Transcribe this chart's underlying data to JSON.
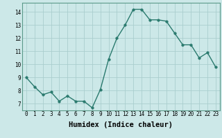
{
  "x": [
    0,
    1,
    2,
    3,
    4,
    5,
    6,
    7,
    8,
    9,
    10,
    11,
    12,
    13,
    14,
    15,
    16,
    17,
    18,
    19,
    20,
    21,
    22,
    23
  ],
  "y": [
    9.0,
    8.3,
    7.7,
    7.9,
    7.2,
    7.6,
    7.2,
    7.2,
    6.7,
    8.1,
    10.4,
    12.0,
    13.0,
    14.2,
    14.2,
    13.4,
    13.4,
    13.3,
    12.4,
    11.5,
    11.5,
    10.5,
    10.9,
    9.8
  ],
  "title": "",
  "xlabel": "Humidex (Indice chaleur)",
  "ylabel": "",
  "xlim": [
    -0.5,
    23.5
  ],
  "ylim": [
    6.5,
    14.7
  ],
  "yticks": [
    7,
    8,
    9,
    10,
    11,
    12,
    13,
    14
  ],
  "xticks": [
    0,
    1,
    2,
    3,
    4,
    5,
    6,
    7,
    8,
    9,
    10,
    11,
    12,
    13,
    14,
    15,
    16,
    17,
    18,
    19,
    20,
    21,
    22,
    23
  ],
  "line_color": "#2a7a6e",
  "marker_color": "#2a7a6e",
  "bg_color": "#cce8e8",
  "grid_color": "#aacece",
  "tick_fontsize": 5.5,
  "label_fontsize": 7.5,
  "linewidth": 1.0,
  "markersize": 2.5
}
